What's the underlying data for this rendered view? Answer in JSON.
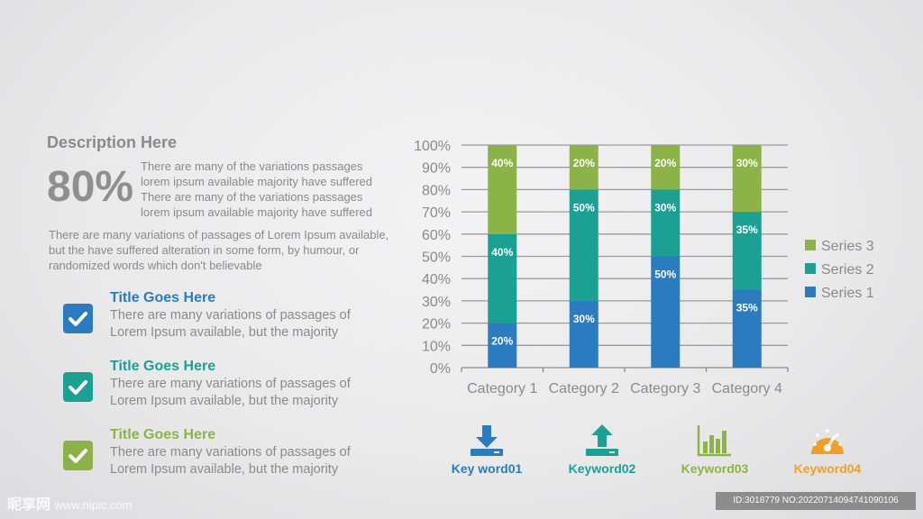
{
  "left": {
    "title": "Description Here",
    "big_percent": "80%",
    "short_paragraph": "There are many of the variations passages lorem ipsum available majority have suffered There are many of the variations passages lorem ipsum available majority have suffered",
    "long_paragraph": "There are many variations of passages  of Lorem Ipsum available, but the have suffered alteration in some  form, by humour, or randomized words which  don't believable",
    "bullets": [
      {
        "title": "Title Goes Here",
        "text": "There are many variations of passages of Lorem Ipsum available, but the majority",
        "color": "#2a7bbf",
        "icon": "checkbox-icon"
      },
      {
        "title": "Title Goes Here",
        "text": "There are many variations of passages of Lorem Ipsum available, but the majority",
        "color": "#1aa193",
        "icon": "checkbox-icon"
      },
      {
        "title": "Title Goes Here",
        "text": "There are many variations of passages of Lorem Ipsum available, but the majority",
        "color": "#8cb348",
        "icon": "checkbox-icon"
      }
    ]
  },
  "chart_data": {
    "type": "bar",
    "stacked": true,
    "categories": [
      "Category 1",
      "Category 2",
      "Category 3",
      "Category 4"
    ],
    "series": [
      {
        "name": "Series 1",
        "values": [
          20,
          30,
          50,
          35
        ],
        "labels": [
          "20%",
          "30%",
          "50%",
          "35%"
        ],
        "color": "#2a7bbf"
      },
      {
        "name": "Series 2",
        "values": [
          40,
          50,
          30,
          35
        ],
        "labels": [
          "40%",
          "50%",
          "30%",
          "35%"
        ],
        "color": "#1aa193"
      },
      {
        "name": "Series 3",
        "values": [
          40,
          20,
          20,
          30
        ],
        "labels": [
          "40%",
          "20%",
          "20%",
          "30%"
        ],
        "color": "#8cb348"
      }
    ],
    "yticks": [
      "0%",
      "10%",
      "20%",
      "30%",
      "40%",
      "50%",
      "60%",
      "70%",
      "80%",
      "90%",
      "100%"
    ],
    "ylim": [
      0,
      100
    ],
    "grid": true,
    "legend_position": "right"
  },
  "keywords": [
    {
      "label": "Key word01",
      "icon": "download-icon",
      "color": "#2a7bbf"
    },
    {
      "label": "Keyword02",
      "icon": "upload-icon",
      "color": "#1aa193"
    },
    {
      "label": "Keyword03",
      "icon": "bar-chart-icon",
      "color": "#8cb348"
    },
    {
      "label": "Keyword04",
      "icon": "speedometer-icon",
      "color": "#f0a026"
    }
  ],
  "watermark": {
    "logo": "昵享网",
    "site": "www.nipic.com",
    "id_text": "ID:3018779 NO:20220714094741090106"
  }
}
